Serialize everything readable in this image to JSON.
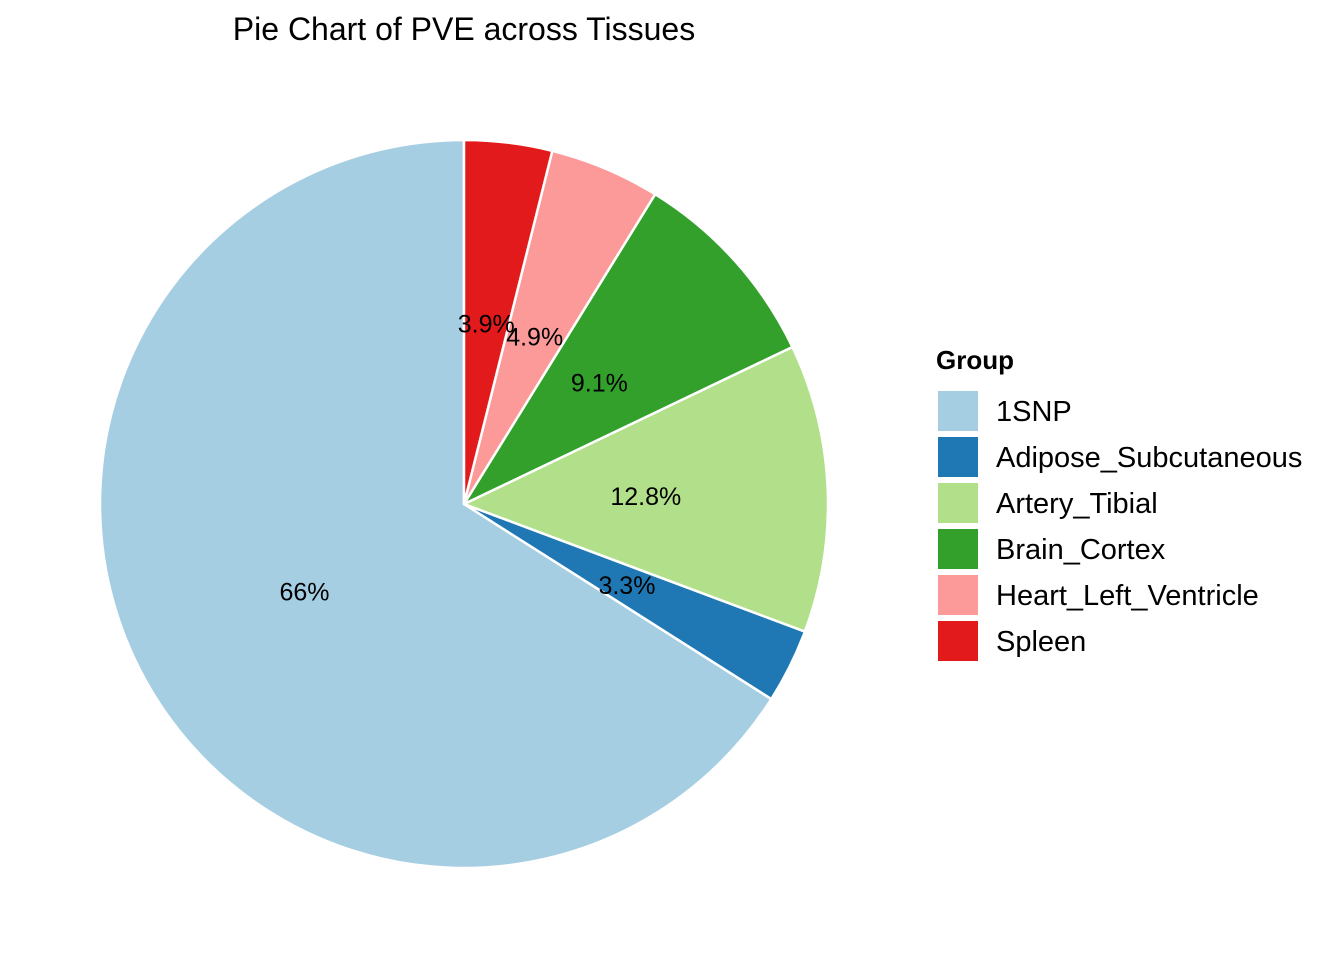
{
  "chart_data": {
    "type": "pie",
    "title": "Pie Chart of PVE across Tissues",
    "legend_title": "Group",
    "legend_position": "right",
    "start": "top",
    "direction": "counterclockwise",
    "slices": [
      {
        "name": "1SNP",
        "value": 66.0,
        "label": "66%",
        "color": "#A6CEE3"
      },
      {
        "name": "Adipose_Subcutaneous",
        "value": 3.3,
        "label": "3.3%",
        "color": "#1F78B4"
      },
      {
        "name": "Artery_Tibial",
        "value": 12.8,
        "label": "12.8%",
        "color": "#B2DF8A"
      },
      {
        "name": "Brain_Cortex",
        "value": 9.1,
        "label": "9.1%",
        "color": "#33A02C"
      },
      {
        "name": "Heart_Left_Ventricle",
        "value": 4.9,
        "label": "4.9%",
        "color": "#FB9A99"
      },
      {
        "name": "Spleen",
        "value": 3.9,
        "label": "3.9%",
        "color": "#E31A1C"
      }
    ]
  }
}
